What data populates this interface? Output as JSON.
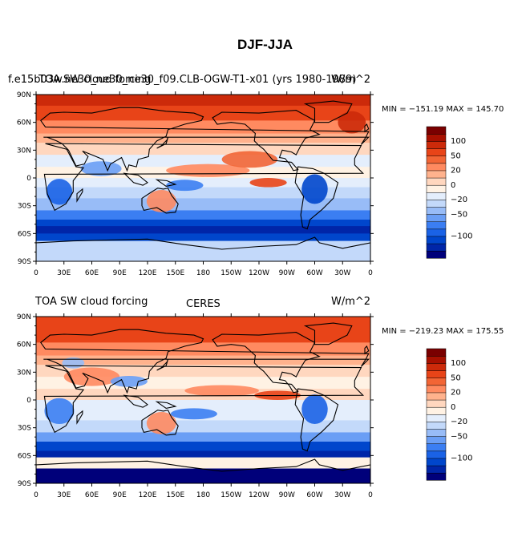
{
  "title": "DJF-JJA",
  "colors": {
    "levels": [
      "#00007a",
      "#0025a8",
      "#0046cc",
      "#1a62e6",
      "#3b7ef2",
      "#6a9ef5",
      "#98bcf7",
      "#c3d9fa",
      "#e4eefc",
      "#fff2e4",
      "#ffd7bf",
      "#ffb28d",
      "#ff8a60",
      "#f26535",
      "#e84418",
      "#cc2a0a",
      "#a81000",
      "#7a0000"
    ],
    "ocean_blue": "#1a62e6",
    "land_outline": "#000000"
  },
  "colorbar": {
    "labels": [
      "100",
      "50",
      "20",
      "0",
      "−20",
      "−50",
      "−100"
    ]
  },
  "axes": {
    "lat_labels": [
      "90N",
      "60N",
      "30N",
      "0",
      "30S",
      "60S",
      "90S"
    ],
    "lon_labels": [
      "0",
      "30E",
      "60E",
      "90E",
      "120E",
      "150E",
      "180",
      "150W",
      "120W",
      "90W",
      "60W",
      "30W",
      "0"
    ]
  },
  "panels": [
    {
      "left_label": "f.e15b03w.ne30_ne30_ne30_f09.CLB-OGW-T1-x01 (yrs 1980-1989)",
      "overlay_label": "TOA SW cloud forcing",
      "center_label": "",
      "right_label": "W/m^2",
      "min_max": "MIN = −151.19 MAX = 145.70"
    },
    {
      "left_label": "TOA SW cloud forcing",
      "overlay_label": "",
      "center_label": "CERES",
      "right_label": "W/m^2",
      "min_max": "MIN = −219.23 MAX = 175.55"
    }
  ]
}
